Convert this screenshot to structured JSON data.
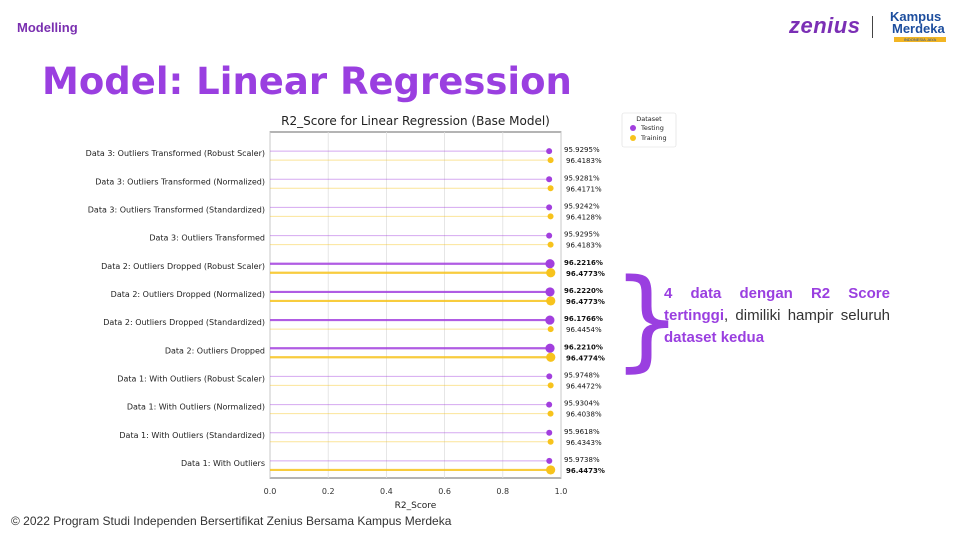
{
  "header": {
    "section_label": "Modelling",
    "logo_zenius": "zenius",
    "logo_kampus": "Kampus",
    "logo_merdeka": "Merdeka",
    "logo_indonesia": "INDONESIA JAYA"
  },
  "title": "Model: Linear Regression",
  "note": {
    "p1": "4 data dengan R2 Score tertinggi",
    "p2": ", dimiliki hampir seluruh ",
    "p3": "dataset kedua"
  },
  "footer": "© 2022 Program Studi Independen Bersertifikat Zenius Bersama Kampus Merdeka",
  "chart_data": {
    "type": "lollipop",
    "title": "R2_Score for Linear Regression (Base Model)",
    "xlabel": "R2_Score",
    "ylabel": "",
    "xlim": [
      0.0,
      1.0
    ],
    "xticks": [
      "0.0",
      "0.2",
      "0.4",
      "0.6",
      "0.8",
      "1.0"
    ],
    "legend": {
      "title": "Dataset",
      "position": "top-right",
      "entries": [
        "Testing",
        "Training"
      ]
    },
    "colors": {
      "Testing": "#a23fde",
      "Training": "#f7c31c"
    },
    "categories": [
      "Data 3: Outliers Transformed (Robust Scaler)",
      "Data 3: Outliers Transformed (Normalized)",
      "Data 3: Outliers Transformed (Standardized)",
      "Data 3: Outliers Transformed",
      "Data 2: Outliers Dropped (Robust Scaler)",
      "Data 2: Outliers Dropped (Normalized)",
      "Data 2: Outliers Dropped (Standardized)",
      "Data 2: Outliers Dropped",
      "Data 1: With Outliers (Robust Scaler)",
      "Data 1: With Outliers (Normalized)",
      "Data 1: With Outliers (Standardized)",
      "Data 1: With Outliers"
    ],
    "series": [
      {
        "name": "Testing",
        "values": [
          0.959295,
          0.959281,
          0.959242,
          0.959295,
          0.962216,
          0.96222,
          0.961766,
          0.96221,
          0.959748,
          0.959304,
          0.959618,
          0.959738
        ],
        "labels": [
          "95.9295%",
          "95.9281%",
          "95.9242%",
          "95.9295%",
          "96.2216%",
          "96.2220%",
          "96.1766%",
          "96.2210%",
          "95.9748%",
          "95.9304%",
          "95.9618%",
          "95.9738%"
        ],
        "highlight": [
          false,
          false,
          false,
          false,
          true,
          true,
          true,
          true,
          false,
          false,
          false,
          false
        ]
      },
      {
        "name": "Training",
        "values": [
          0.964183,
          0.964171,
          0.964128,
          0.964183,
          0.964773,
          0.964773,
          0.964454,
          0.964774,
          0.964472,
          0.964038,
          0.964343,
          0.964473
        ],
        "labels": [
          "96.4183%",
          "96.4171%",
          "96.4128%",
          "96.4183%",
          "96.4773%",
          "96.4773%",
          "96.4454%",
          "96.4774%",
          "96.4472%",
          "96.4038%",
          "96.4343%",
          "96.4473%"
        ],
        "highlight": [
          false,
          false,
          false,
          false,
          true,
          true,
          false,
          true,
          false,
          false,
          false,
          true
        ]
      }
    ]
  }
}
